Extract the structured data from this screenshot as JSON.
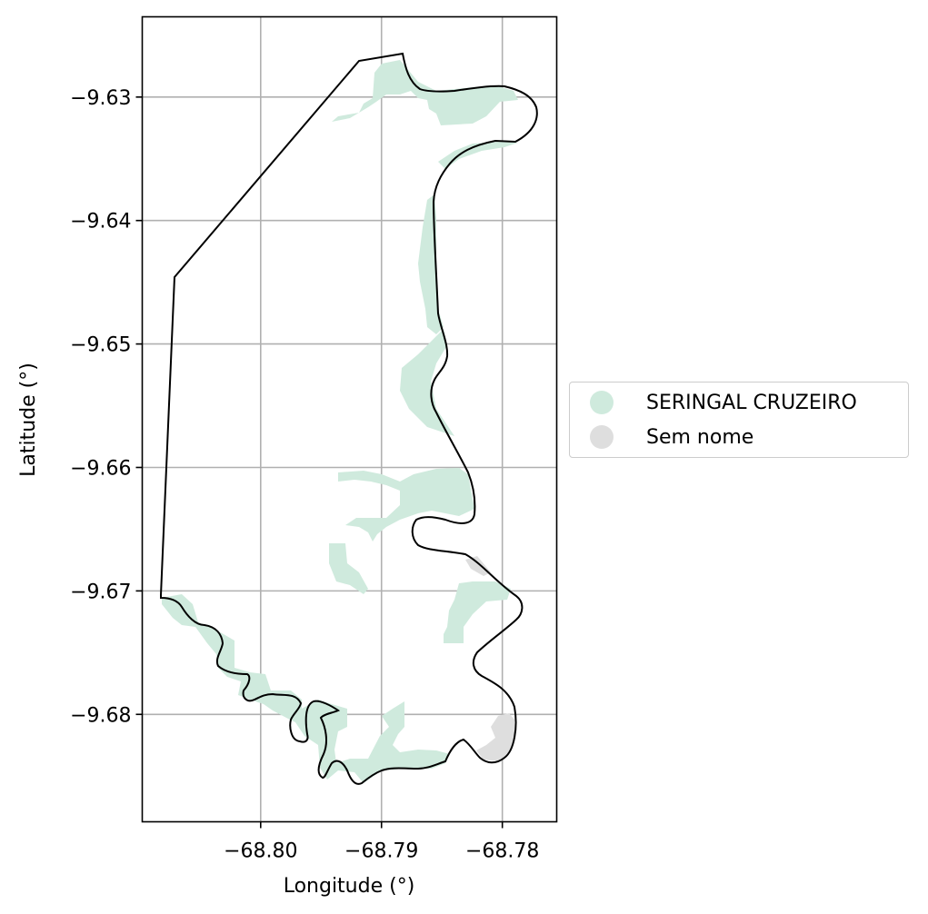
{
  "map": {
    "xlabel": "Longitude (°)",
    "ylabel": "Latitude (°)",
    "xlim": [
      -68.8098,
      -68.7755
    ],
    "ylim": [
      -9.6887,
      -9.6235
    ],
    "xticks": [
      {
        "value": -68.8,
        "label": "−68.80"
      },
      {
        "value": -68.79,
        "label": "−68.79"
      },
      {
        "value": -68.78,
        "label": "−68.78"
      }
    ],
    "yticks": [
      {
        "value": -9.63,
        "label": "−9.63"
      },
      {
        "value": -9.64,
        "label": "−9.64"
      },
      {
        "value": -9.65,
        "label": "−9.65"
      },
      {
        "value": -9.66,
        "label": "−9.66"
      },
      {
        "value": -9.67,
        "label": "−9.67"
      },
      {
        "value": -9.68,
        "label": "−9.68"
      }
    ],
    "grid": true,
    "colors": {
      "seringal": "#cfeadd",
      "sem_nome": "#dedede",
      "boundary": "#000000",
      "grid": "#b0b0b0"
    }
  },
  "legend": {
    "placement": "center-right",
    "items": [
      {
        "label": "SERINGAL CRUZEIRO",
        "color": "#cfeadd"
      },
      {
        "label": "Sem nome",
        "color": "#dedede"
      }
    ]
  }
}
